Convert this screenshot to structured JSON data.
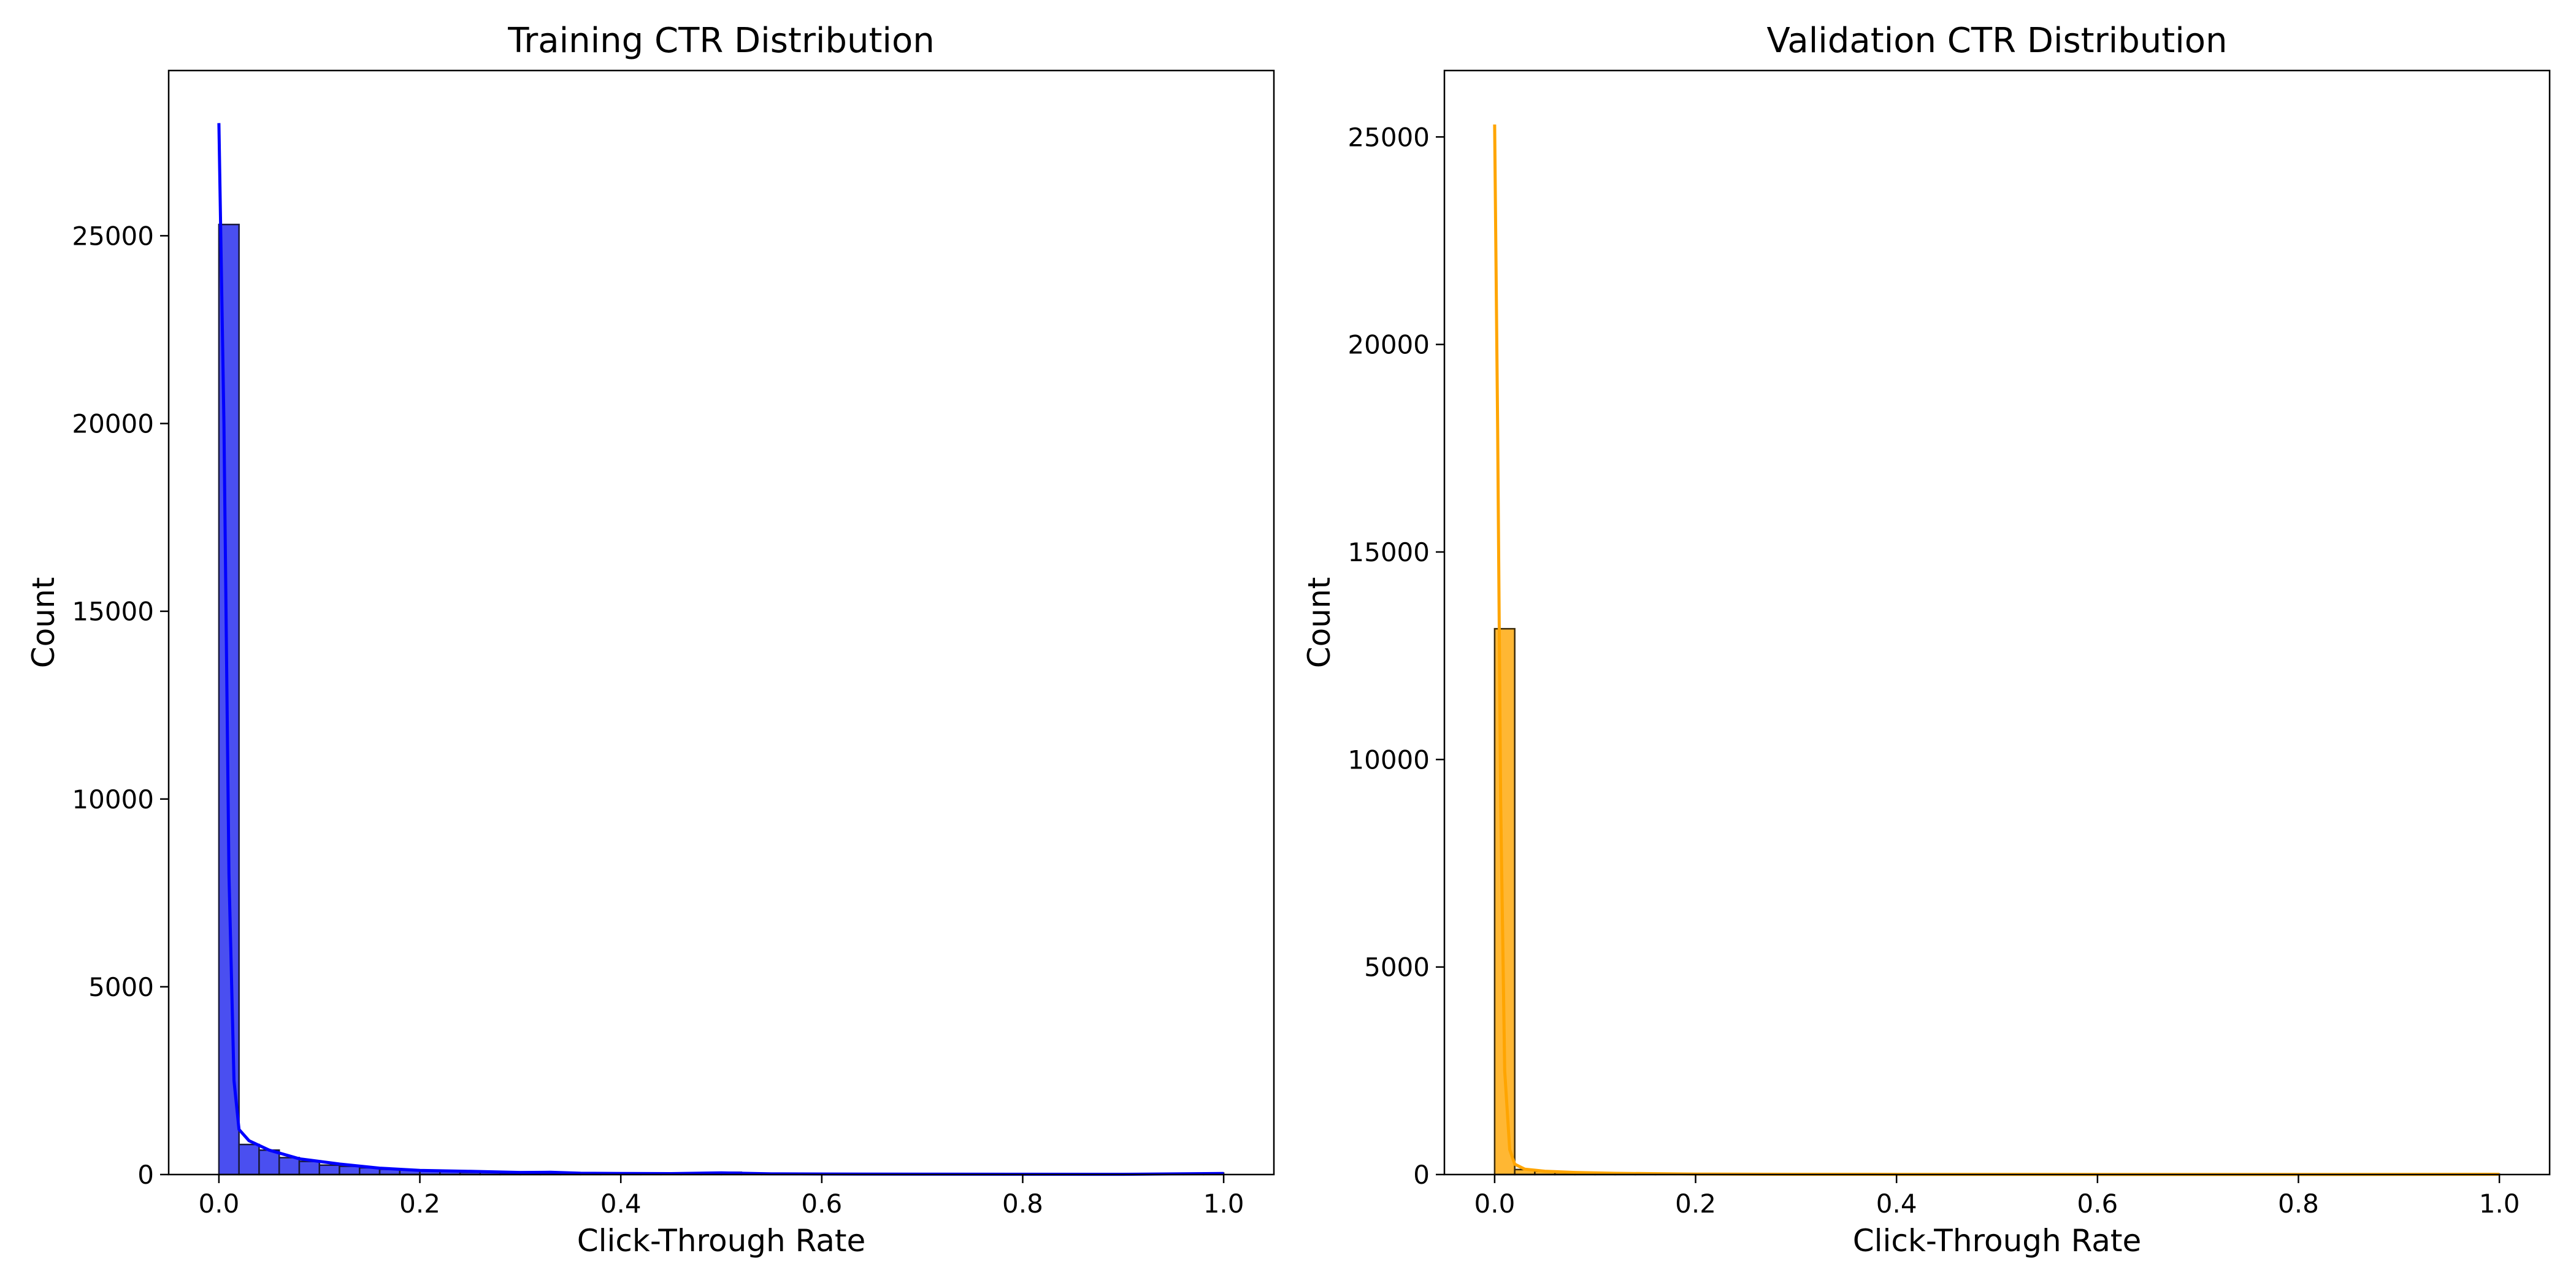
{
  "chart_data": [
    {
      "type": "bar",
      "title": "Training CTR Distribution",
      "xlabel": "Click-Through Rate",
      "ylabel": "Count",
      "xlim": [
        -0.05,
        1.05
      ],
      "ylim": [
        0,
        29400
      ],
      "xticks": [
        0.0,
        0.2,
        0.4,
        0.6,
        0.8,
        1.0
      ],
      "xtick_labels": [
        "0.0",
        "0.2",
        "0.4",
        "0.6",
        "0.8",
        "1.0"
      ],
      "yticks": [
        0,
        5000,
        10000,
        15000,
        20000,
        25000
      ],
      "ytick_labels": [
        "0",
        "5000",
        "10000",
        "15000",
        "20000",
        "25000"
      ],
      "bin_width": 0.02,
      "bins": [
        0.0,
        0.02,
        0.04,
        0.06,
        0.08,
        0.1,
        0.12,
        0.14,
        0.16,
        0.18,
        0.2,
        0.22,
        0.24,
        0.26,
        0.28,
        0.3,
        0.32,
        0.34,
        0.36,
        0.38,
        0.4,
        0.42,
        0.44,
        0.46,
        0.48,
        0.5,
        0.52,
        0.54,
        0.56,
        0.58,
        0.6,
        0.62,
        0.64,
        0.66,
        0.68,
        0.7,
        0.72,
        0.74,
        0.76,
        0.78,
        0.8,
        0.82,
        0.84,
        0.86,
        0.88,
        0.9,
        0.92,
        0.94,
        0.96,
        0.98
      ],
      "values": [
        25300,
        800,
        650,
        450,
        350,
        250,
        220,
        180,
        140,
        120,
        100,
        80,
        60,
        70,
        40,
        35,
        30,
        50,
        25,
        20,
        20,
        15,
        15,
        12,
        12,
        60,
        10,
        10,
        8,
        8,
        8,
        6,
        6,
        6,
        5,
        5,
        5,
        5,
        4,
        4,
        4,
        4,
        3,
        3,
        3,
        3,
        3,
        3,
        3,
        40
      ],
      "kde": {
        "x": [
          0.0,
          0.005,
          0.01,
          0.015,
          0.02,
          0.03,
          0.05,
          0.08,
          0.12,
          0.16,
          0.2,
          0.25,
          0.3,
          0.33,
          0.36,
          0.4,
          0.45,
          0.5,
          0.55,
          0.6,
          0.7,
          0.8,
          0.9,
          1.0
        ],
        "y": [
          28000,
          20000,
          8000,
          2500,
          1200,
          900,
          650,
          420,
          280,
          170,
          110,
          85,
          55,
          60,
          35,
          30,
          25,
          45,
          18,
          14,
          10,
          8,
          6,
          30
        ]
      },
      "bar_color": "#4a4ff0",
      "bar_edge_color": "#1a1a3a",
      "line_color": "#0000ff"
    },
    {
      "type": "bar",
      "title": "Validation CTR Distribution",
      "xlabel": "Click-Through Rate",
      "ylabel": "Count",
      "xlim": [
        -0.05,
        1.05
      ],
      "ylim": [
        0,
        26600
      ],
      "xticks": [
        0.0,
        0.2,
        0.4,
        0.6,
        0.8,
        1.0
      ],
      "xtick_labels": [
        "0.0",
        "0.2",
        "0.4",
        "0.6",
        "0.8",
        "1.0"
      ],
      "yticks": [
        0,
        5000,
        10000,
        15000,
        20000,
        25000
      ],
      "ytick_labels": [
        "0",
        "5000",
        "10000",
        "15000",
        "20000",
        "25000"
      ],
      "bin_width": 0.02,
      "bins": [
        0.0,
        0.02,
        0.04,
        0.06,
        0.08,
        0.1,
        0.12,
        0.14,
        0.16,
        0.18,
        0.2,
        0.22,
        0.24,
        0.26,
        0.28,
        0.3,
        0.32,
        0.34,
        0.36,
        0.38,
        0.4,
        0.42,
        0.44,
        0.46,
        0.48,
        0.5,
        0.52,
        0.54,
        0.56,
        0.58,
        0.6,
        0.62,
        0.64,
        0.66,
        0.68,
        0.7,
        0.72,
        0.74,
        0.76,
        0.78,
        0.8,
        0.82,
        0.84,
        0.86,
        0.88,
        0.9,
        0.92,
        0.94,
        0.96,
        0.98
      ],
      "values": [
        13150,
        120,
        80,
        50,
        35,
        25,
        20,
        15,
        12,
        10,
        8,
        6,
        5,
        5,
        4,
        3,
        3,
        6,
        3,
        2,
        2,
        2,
        2,
        1,
        1,
        5,
        1,
        1,
        1,
        1,
        1,
        1,
        1,
        1,
        1,
        1,
        1,
        1,
        1,
        1,
        1,
        1,
        1,
        1,
        1,
        1,
        1,
        1,
        1,
        8
      ],
      "kde": {
        "x": [
          0.0,
          0.003,
          0.006,
          0.01,
          0.015,
          0.02,
          0.03,
          0.05,
          0.08,
          0.12,
          0.2,
          0.3,
          0.4,
          0.5,
          0.6,
          0.8,
          1.0
        ],
        "y": [
          25300,
          18000,
          9000,
          2500,
          600,
          250,
          130,
          80,
          50,
          30,
          12,
          6,
          4,
          5,
          2,
          1,
          6
        ]
      },
      "bar_color": "#ffb733",
      "bar_edge_color": "#3a2a0a",
      "line_color": "#ffa500"
    }
  ]
}
